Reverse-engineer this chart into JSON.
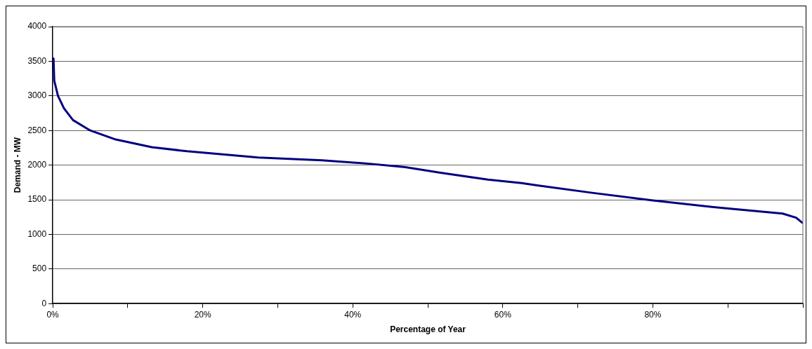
{
  "chart_data": {
    "type": "line",
    "xlabel": "Percentage of Year",
    "ylabel": "Demand - MW",
    "x": [
      0,
      0.1,
      0.2,
      0.7,
      1.5,
      2.7,
      5.0,
      8.4,
      13.2,
      17.9,
      27.4,
      35.9,
      42.2,
      47,
      51.7,
      58,
      62.5,
      64.4,
      71.9,
      80,
      89.3,
      97.3,
      99.1,
      99.9
    ],
    "series": [
      {
        "color": "#000080",
        "values": [
          3530,
          3540,
          3220,
          3000,
          2820,
          2650,
          2500,
          2370,
          2260,
          2200,
          2110,
          2070,
          2020,
          1970,
          1890,
          1790,
          1740,
          1710,
          1600,
          1490,
          1380,
          1300,
          1240,
          1170
        ]
      }
    ],
    "xlim": [
      0,
      100
    ],
    "xticks": [
      {
        "value": 0,
        "label": "0%"
      },
      {
        "value": 10,
        "label": null
      },
      {
        "value": 20,
        "label": "20%"
      },
      {
        "value": 30,
        "label": null
      },
      {
        "value": 40,
        "label": "40%"
      },
      {
        "value": 50,
        "label": null
      },
      {
        "value": 60,
        "label": "60%"
      },
      {
        "value": 70,
        "label": null
      },
      {
        "value": 80,
        "label": "80%"
      },
      {
        "value": 90,
        "label": null
      },
      {
        "value": 100,
        "label": null
      }
    ],
    "ylim": [
      0,
      4000
    ],
    "yticks": [
      0,
      500,
      1000,
      1500,
      2000,
      2500,
      3000,
      3500,
      4000
    ],
    "grid": "y",
    "legend": false,
    "marker": "none",
    "line_style": "solid"
  }
}
